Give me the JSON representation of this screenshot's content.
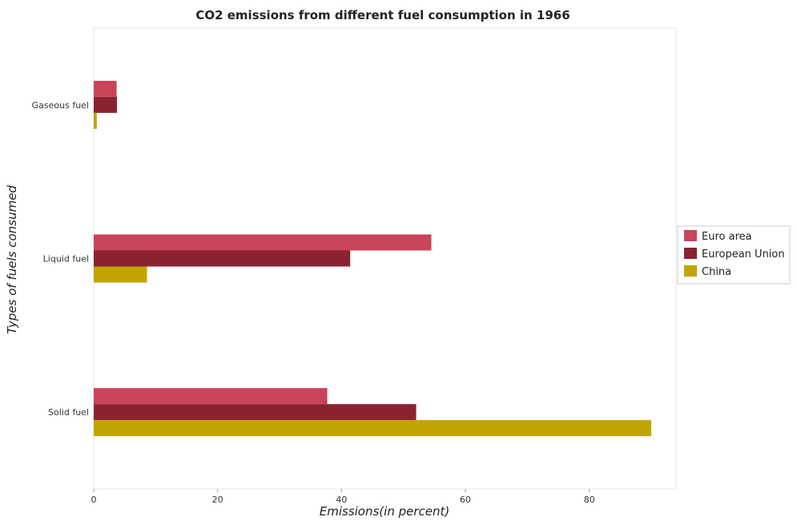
{
  "chart_data": {
    "type": "bar",
    "orientation": "horizontal",
    "title": "CO2 emissions from different fuel consumption in 1966",
    "xlabel": "Emissions(in percent)",
    "ylabel": "Types of fuels consumed",
    "xlim": [
      0,
      94
    ],
    "xticks": [
      0,
      20,
      40,
      60,
      80
    ],
    "grid": false,
    "legend_position": "right",
    "categories": [
      "Gaseous fuel",
      "Liquid fuel",
      "Solid fuel"
    ],
    "series": [
      {
        "name": "Euro area",
        "color": "#c8445a",
        "values": [
          3.7,
          54.5,
          37.7
        ]
      },
      {
        "name": "European Union",
        "color": "#8b2231",
        "values": [
          3.75,
          41.4,
          52.05
        ]
      },
      {
        "name": "China",
        "color": "#c2a400",
        "values": [
          0.5,
          8.6,
          90.0
        ]
      }
    ]
  }
}
